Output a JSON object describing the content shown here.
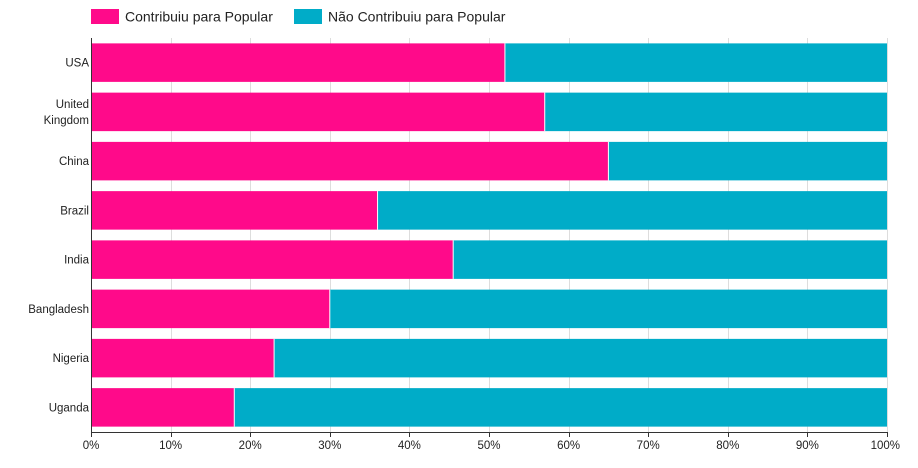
{
  "chart_data": {
    "type": "bar",
    "orientation": "horizontal",
    "stacked": true,
    "stack_mode": "percent",
    "title": "",
    "xlabel": "",
    "ylabel": "",
    "categories": [
      "USA",
      "United Kingdom",
      "China",
      "Brazil",
      "India",
      "Bangladesh",
      "Nigeria",
      "Uganda"
    ],
    "category_lines": [
      [
        "USA"
      ],
      [
        "United",
        "Kingdom"
      ],
      [
        "China"
      ],
      [
        "Brazil"
      ],
      [
        "India"
      ],
      [
        "Bangladesh"
      ],
      [
        "Nigeria"
      ],
      [
        "Uganda"
      ]
    ],
    "series": [
      {
        "name": "Contribuiu para Popular",
        "color": "#FF0A8A",
        "values": [
          52,
          57,
          65,
          36,
          45.5,
          30,
          23,
          18
        ]
      },
      {
        "name": "Não Contribuiu para Popular",
        "color": "#00ACC8",
        "values": [
          48,
          43,
          35,
          64,
          54.5,
          70,
          77,
          82
        ]
      }
    ],
    "xlim": [
      0,
      100
    ],
    "x_ticks": [
      "0%",
      "10%",
      "20%",
      "30%",
      "40%",
      "50%",
      "60%",
      "70%",
      "80%",
      "90%",
      "100%"
    ],
    "legend_position": "top-left",
    "grid": true
  }
}
